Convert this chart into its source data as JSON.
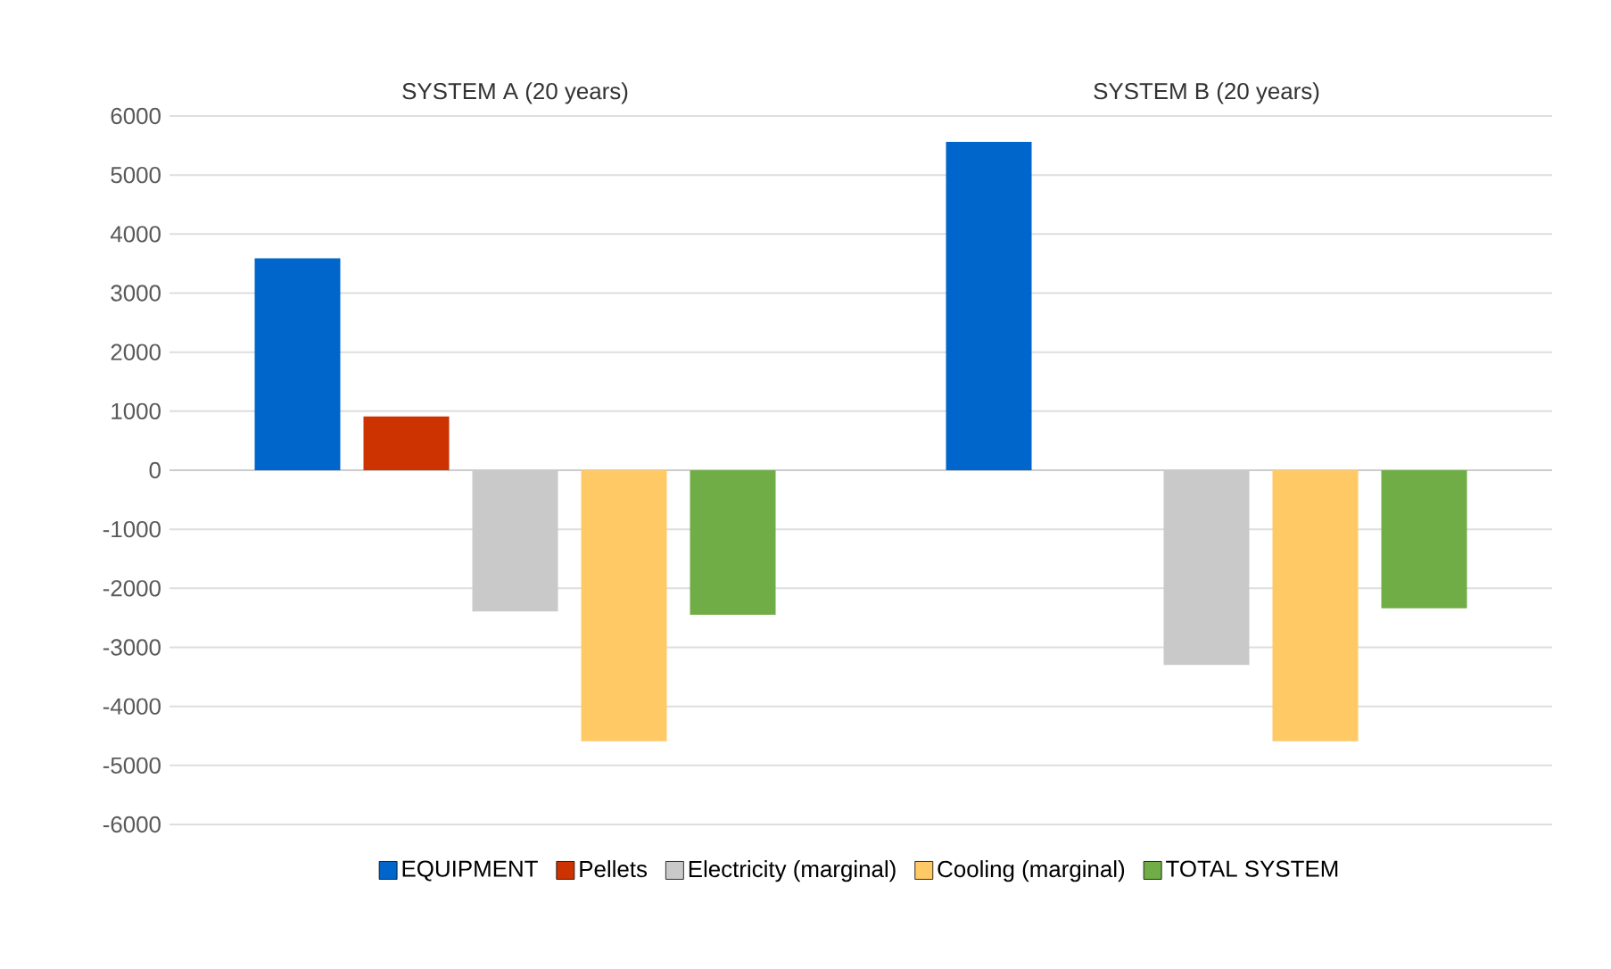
{
  "chart_data": {
    "type": "bar",
    "categories": [
      "SYSTEM A (20 years)",
      "SYSTEM B (20 years)"
    ],
    "series": [
      {
        "name": "EQUIPMENT",
        "color": "#0066cc",
        "values": [
          3590,
          5560
        ]
      },
      {
        "name": "Pellets",
        "color": "#cc3300",
        "values": [
          910,
          null
        ]
      },
      {
        "name": "Electricity (marginal)",
        "color": "#c9c9c9",
        "values": [
          -2390,
          -3300
        ]
      },
      {
        "name": "Cooling (marginal)",
        "color": "#ffc966",
        "values": [
          -4590,
          -4590
        ]
      },
      {
        "name": "TOTAL SYSTEM",
        "color": "#70ad47",
        "values": [
          -2450,
          -2340
        ]
      }
    ],
    "ylim": [
      -6000,
      6000
    ],
    "yticks": [
      -6000,
      -5000,
      -4000,
      -3000,
      -2000,
      -1000,
      0,
      1000,
      2000,
      3000,
      4000,
      5000,
      6000
    ],
    "grid": "y",
    "legend": "bottom"
  }
}
